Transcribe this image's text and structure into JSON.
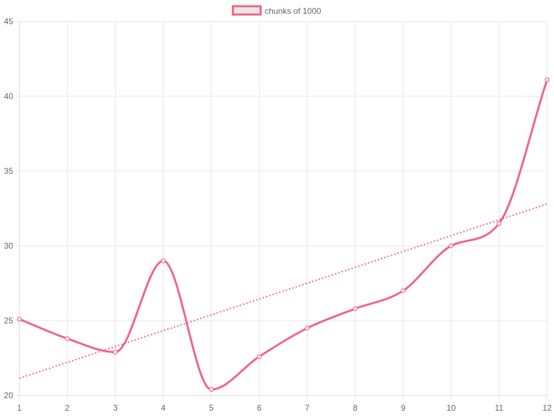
{
  "chart_data": {
    "type": "line",
    "title": "",
    "xlabel": "",
    "ylabel": "",
    "x": [
      1,
      2,
      3,
      4,
      5,
      6,
      7,
      8,
      9,
      10,
      11,
      12
    ],
    "ylim": [
      20,
      45
    ],
    "y_ticks": [
      20,
      25,
      30,
      35,
      40,
      45
    ],
    "grid": true,
    "legend_position": "top-center",
    "series": [
      {
        "name": "chunks of 1000",
        "values": [
          25.1,
          23.8,
          22.9,
          29.0,
          20.4,
          22.6,
          24.5,
          25.8,
          27.0,
          30.0,
          31.5,
          41.1
        ],
        "color": "#f06584",
        "fill": "#e8e8ea",
        "smooth": true
      }
    ],
    "trendline": {
      "start": 21.15,
      "end": 32.8,
      "style": "dotted",
      "color": "#f06584"
    }
  }
}
